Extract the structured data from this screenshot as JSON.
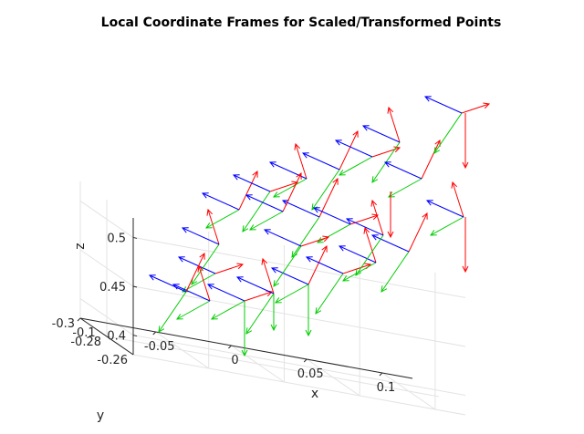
{
  "chart_data": {
    "type": "3d-quiver",
    "title": "Local Coordinate Frames for Scaled/Transformed Points",
    "xlabel": "x",
    "ylabel": "y",
    "zlabel": "z",
    "x_ticks": [
      "-0.1",
      "-0.05",
      "0",
      "0.05",
      "0.1"
    ],
    "y_ticks": [
      "-0.3",
      "-0.28",
      "-0.26"
    ],
    "z_ticks": [
      "0.4",
      "0.45",
      "0.5"
    ],
    "xlim": [
      -0.1,
      0.12
    ],
    "ylim": [
      -0.3,
      -0.26
    ],
    "zlim": [
      0.38,
      0.52
    ],
    "grid": true,
    "series": [
      {
        "axis": "x-axis",
        "color": "#ff0000"
      },
      {
        "axis": "y-axis",
        "color": "#00cc00"
      },
      {
        "axis": "z-axis",
        "color": "#0000ff"
      }
    ]
  }
}
